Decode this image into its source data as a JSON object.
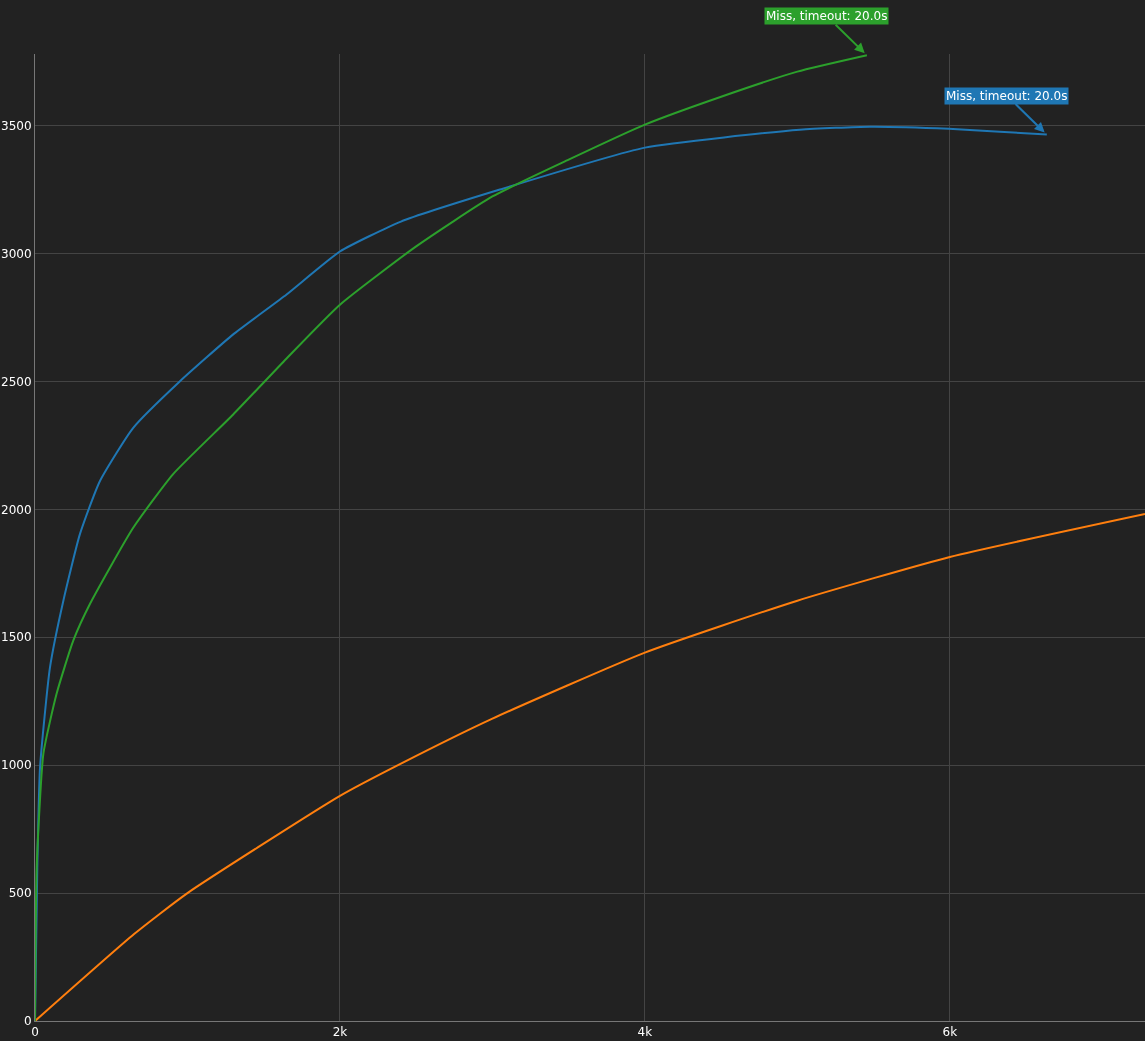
{
  "chart_data": {
    "type": "line",
    "grid": true,
    "marker": "none",
    "line_style": "solid",
    "xlim": [
      0,
      7280
    ],
    "ylim": [
      0,
      3780
    ],
    "xticks": [
      0,
      {
        "value": 2000,
        "label": "2k"
      },
      {
        "value": 4000,
        "label": "4k"
      },
      {
        "value": 6000,
        "label": "6k"
      }
    ],
    "yticks": [
      0,
      500,
      1000,
      1500,
      2000,
      2500,
      3000,
      3500
    ],
    "series": [
      {
        "color": "#1f77b4",
        "x": [
          0,
          15,
          33,
          98,
          186,
          295,
          426,
          643,
          951,
          1300,
          1650,
          2000,
          2400,
          3049,
          4000,
          5016,
          5475,
          5993,
          6328,
          6636
        ],
        "values": [
          0,
          600,
          991,
          1381,
          1643,
          1904,
          2111,
          2318,
          2501,
          2684,
          2840,
          3008,
          3125,
          3250,
          3414,
          3484,
          3496,
          3488,
          3476,
          3465
        ]
      },
      {
        "color": "#ff7f0e",
        "x": [
          0,
          650,
          1000,
          2000,
          2400,
          3000,
          4000,
          5000,
          6000,
          7280
        ],
        "values": [
          0,
          340,
          500,
          880,
          1006,
          1182,
          1440,
          1643,
          1814,
          1982
        ]
      },
      {
        "color": "#2ca02c",
        "x": [
          0,
          11,
          55,
          142,
          251,
          361,
          643,
          906,
          1300,
          1650,
          2000,
          2500,
          3000,
          3500,
          4000,
          4500,
          5000,
          5456
        ],
        "values": [
          0,
          601,
          1045,
          1280,
          1487,
          1631,
          1927,
          2138,
          2371,
          2590,
          2800,
          3028,
          3223,
          3367,
          3504,
          3613,
          3711,
          3775
        ]
      }
    ],
    "annotations": [
      {
        "text": "Miss, timeout: 20.0s",
        "x": 5456,
        "y": 3775
      },
      {
        "text": "Miss, timeout: 20.0s",
        "x": 6636,
        "y": 3465
      }
    ]
  }
}
